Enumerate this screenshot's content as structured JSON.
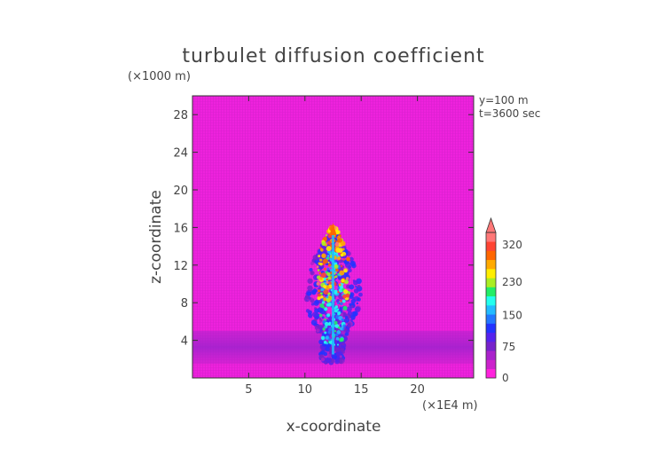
{
  "chart_data": {
    "type": "heatmap",
    "title": "turbulet diffusion coefficient",
    "xlabel": "x-coordinate",
    "ylabel": "z-coordinate",
    "x_unit": "(×1E4 m)",
    "y_unit": "(×1000 m)",
    "annotations": [
      "y=100  m",
      "t=3600 sec"
    ],
    "xlim": [
      0,
      25
    ],
    "ylim": [
      0,
      30
    ],
    "x_ticks": [
      5,
      10,
      15,
      20
    ],
    "y_ticks": [
      4,
      8,
      12,
      16,
      20,
      24,
      28
    ],
    "colorbar": {
      "tick_labels": [
        "0",
        "75",
        "150",
        "230",
        "320"
      ],
      "tick_values": [
        0,
        75,
        150,
        230,
        320
      ],
      "max": 350,
      "colors": [
        "#ff22dd",
        "#cc22cc",
        "#aa22cc",
        "#7722cc",
        "#5522ee",
        "#2233ff",
        "#2277ff",
        "#22bbff",
        "#22ffee",
        "#22ee66",
        "#aaee22",
        "#ffee00",
        "#ffaa00",
        "#ff6600",
        "#ff4433",
        "#ff7777"
      ]
    },
    "plume": {
      "center_x": 12.5,
      "top_z": 16.5,
      "base_z": 2.5,
      "core_value": 300,
      "background_value": 0,
      "boundary_layer_z": [
        1.5,
        5.0
      ]
    }
  }
}
